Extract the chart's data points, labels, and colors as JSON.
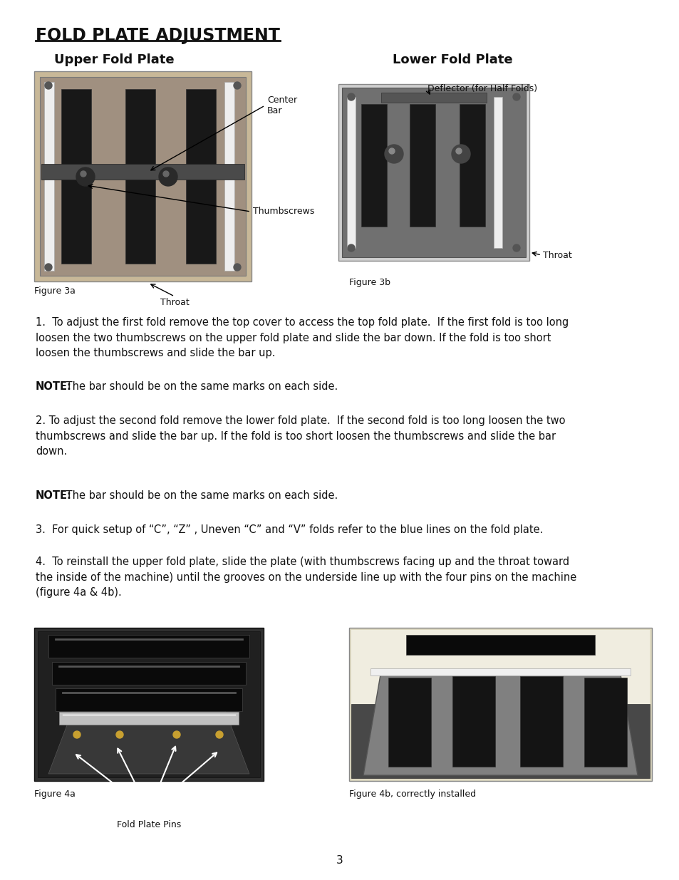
{
  "title": "FOLD PLATE ADJUSTMENT",
  "subtitle_left": "Upper Fold Plate",
  "subtitle_right": "Lower Fold Plate",
  "bg_color": "#ffffff",
  "text_color": "#000000",
  "page_number": "3",
  "para1": "1.  To adjust the first fold remove the top cover to access the top fold plate.  If the first fold is too long\nloosen the two thumbscrews on the upper fold plate and slide the bar down. If the fold is too short\nloosen the thumbscrews and slide the bar up.",
  "note1_bold": "NOTE:",
  "note1_rest": " The bar should be on the same marks on each side.",
  "para2": "2. To adjust the second fold remove the lower fold plate.  If the second fold is too long loosen the two\nthumbscrews and slide the bar up. If the fold is too short loosen the thumbscrews and slide the bar\ndown.",
  "note2_bold": "NOTE:",
  "note2_rest": " The bar should be on the same marks on each side.",
  "para3": "3.  For quick setup of “C”, “Z” , Uneven “C” and “V” folds refer to the blue lines on the fold plate.",
  "para4": "4.  To reinstall the upper fold plate, slide the plate (with thumbscrews facing up and the throat toward\nthe inside of the machine) until the grooves on the underside line up with the four pins on the machine\n(figure 4a & 4b).",
  "label_center_bar": "Center\nBar",
  "label_thumbscrews": "Thumbscrews",
  "label_throat_left": "Throat",
  "label_fig3a": "Figure 3a",
  "label_deflector": "Deflector (for Half Folds)",
  "label_throat_right": "Throat",
  "label_fig3b": "Figure 3b",
  "label_fig4a": "Figure 4a",
  "label_fold_plate_pins": "Fold Plate Pins",
  "label_fig4b": "Figure 4b, correctly installed"
}
